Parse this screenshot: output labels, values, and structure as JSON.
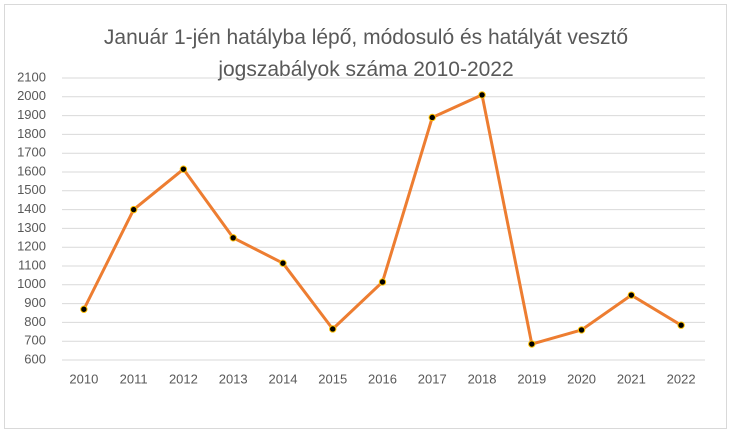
{
  "chart_data": {
    "type": "line",
    "title": "Január 1-jén hatályba lépő, módosuló és hatályát vesztő jogszabályok száma 2010-2022",
    "categories": [
      "2010",
      "2011",
      "2012",
      "2013",
      "2014",
      "2015",
      "2016",
      "2017",
      "2018",
      "2019",
      "2020",
      "2021",
      "2022"
    ],
    "values": [
      870,
      1400,
      1615,
      1250,
      1115,
      765,
      1015,
      1890,
      2010,
      685,
      760,
      945,
      785
    ],
    "color": "#ed7d31",
    "marker_color": "#000000",
    "marker_edge_color": "#ffc000",
    "ylim": [
      600,
      2100
    ],
    "yticks": [
      600,
      700,
      800,
      900,
      1000,
      1100,
      1200,
      1300,
      1400,
      1500,
      1600,
      1700,
      1800,
      1900,
      2000,
      2100
    ],
    "grid": true
  }
}
